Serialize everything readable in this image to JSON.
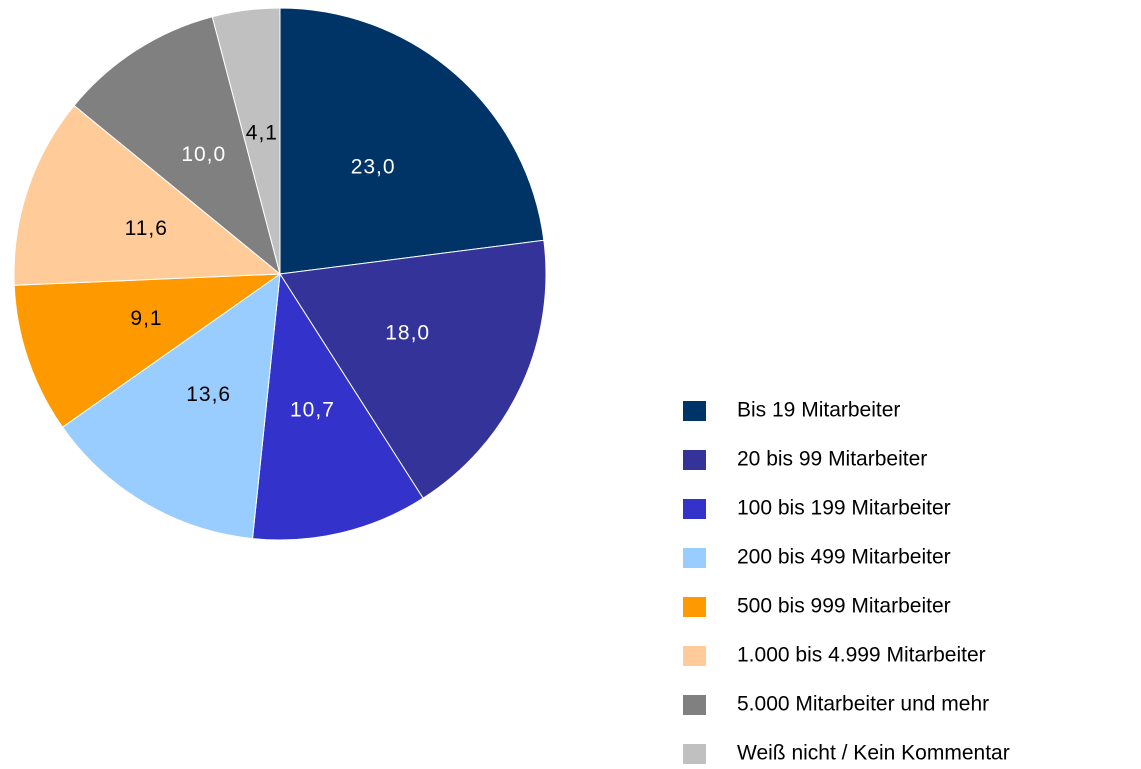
{
  "chart_data": {
    "type": "pie",
    "categories": [
      "Bis 19 Mitarbeiter",
      "20 bis 99 Mitarbeiter",
      "100 bis 199 Mitarbeiter",
      "200 bis 499 Mitarbeiter",
      "500 bis 999 Mitarbeiter",
      "1.000 bis 4.999 Mitarbeiter",
      "5.000 Mitarbeiter und mehr",
      "Weiß nicht / Kein Kommentar"
    ],
    "values": [
      23.0,
      18.0,
      10.7,
      13.6,
      9.1,
      11.6,
      10.0,
      4.1
    ],
    "value_labels": [
      "23,0",
      "18,0",
      "10,7",
      "13,6",
      "9,1",
      "11,6",
      "10,0",
      "4,1"
    ],
    "colors": [
      "#003366",
      "#333399",
      "#3333cc",
      "#99ccff",
      "#ff9900",
      "#ffcc99",
      "#808080",
      "#c0c0c0"
    ],
    "legend": "right"
  }
}
